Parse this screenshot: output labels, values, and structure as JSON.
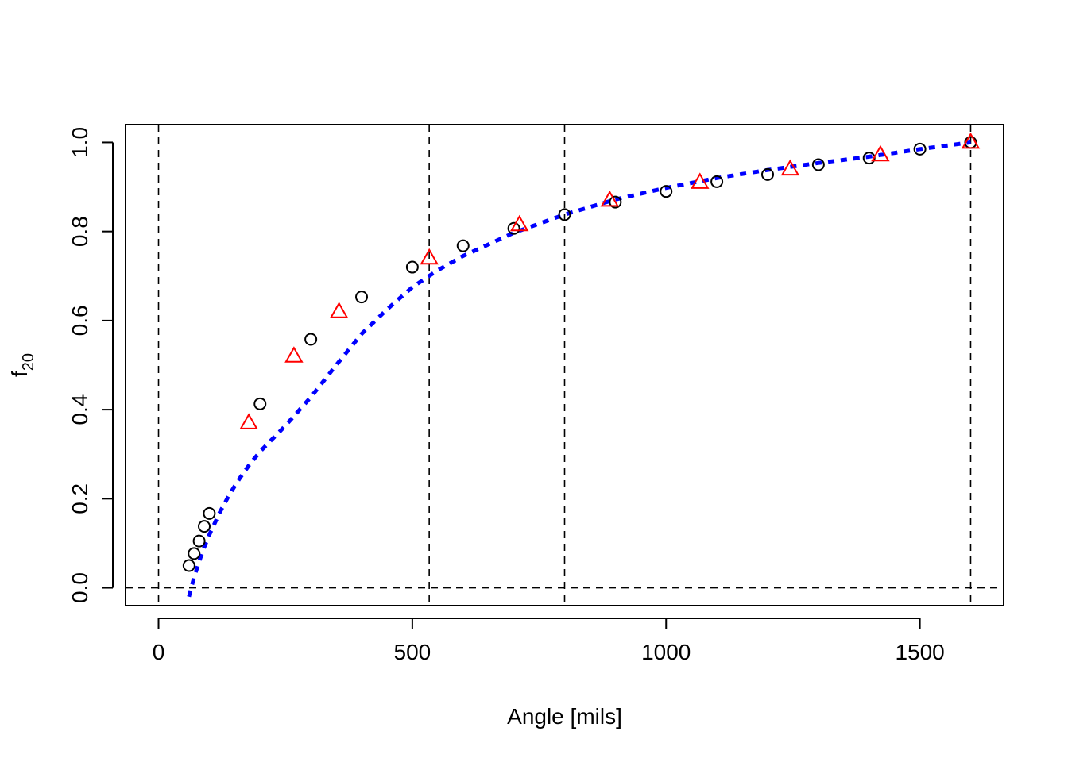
{
  "chart_data": {
    "type": "scatter",
    "title": "",
    "xlabel": "Angle [mils]",
    "ylabel": {
      "base": "f",
      "sub": "20"
    },
    "xlim": [
      -65,
      1665
    ],
    "ylim": [
      -0.04,
      1.04
    ],
    "xticks": [
      0,
      500,
      1000,
      1500
    ],
    "yticks": [
      0.0,
      0.2,
      0.4,
      0.6,
      0.8,
      1.0
    ],
    "xtick_labels": [
      "0",
      "500",
      "1000",
      "1500"
    ],
    "ytick_labels": [
      "0.0",
      "0.2",
      "0.4",
      "0.6",
      "0.8",
      "1.0"
    ],
    "grid": false,
    "reference_lines": {
      "vertical": [
        0,
        533.3,
        800,
        1600
      ],
      "horizontal": [
        0
      ]
    },
    "series": [
      {
        "marker": "circle",
        "color": "#000000",
        "x": [
          60,
          70,
          80,
          90,
          100,
          200,
          300,
          400,
          500,
          600,
          700,
          800,
          900,
          1000,
          1100,
          1200,
          1300,
          1400,
          1500,
          1600
        ],
        "y": [
          0.05,
          0.077,
          0.105,
          0.138,
          0.167,
          0.413,
          0.558,
          0.653,
          0.72,
          0.768,
          0.807,
          0.838,
          0.866,
          0.89,
          0.912,
          0.928,
          0.95,
          0.965,
          0.985,
          1.0
        ]
      },
      {
        "marker": "triangle",
        "color": "#ff0000",
        "x": [
          177.8,
          266.7,
          355.6,
          533.3,
          711.1,
          888.9,
          1066.7,
          1244.4,
          1422.2,
          1600
        ],
        "y": [
          0.37,
          0.52,
          0.62,
          0.74,
          0.815,
          0.87,
          0.91,
          0.94,
          0.972,
          1.0
        ]
      },
      {
        "marker": "none",
        "line": "dotted",
        "color": "#0000ff",
        "x": [
          60,
          65,
          70,
          80,
          90,
          100,
          120,
          140,
          160,
          180,
          200,
          250,
          300,
          350,
          400,
          450,
          500,
          550,
          600,
          700,
          800,
          900,
          1000,
          1100,
          1200,
          1300,
          1400,
          1500,
          1600
        ],
        "y": [
          -0.02,
          0.002,
          0.023,
          0.059,
          0.091,
          0.119,
          0.168,
          0.21,
          0.246,
          0.278,
          0.306,
          0.364,
          0.428,
          0.5,
          0.57,
          0.625,
          0.675,
          0.713,
          0.745,
          0.797,
          0.838,
          0.872,
          0.898,
          0.92,
          0.938,
          0.954,
          0.968,
          0.985,
          1.0
        ]
      }
    ]
  }
}
